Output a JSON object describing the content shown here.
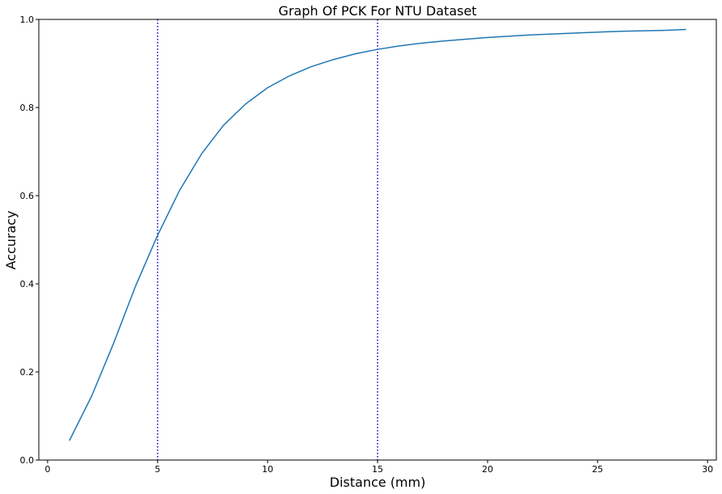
{
  "chart_data": {
    "type": "line",
    "title": "Graph Of PCK For NTU Dataset",
    "xlabel": "Distance (mm)",
    "ylabel": "Accuracy",
    "xlim": [
      -0.4,
      30.4
    ],
    "ylim": [
      0.0,
      1.0
    ],
    "x_ticks": [
      0,
      5,
      10,
      15,
      20,
      25,
      30
    ],
    "y_ticks": [
      0.0,
      0.2,
      0.4,
      0.6,
      0.8,
      1.0
    ],
    "x_tick_labels": [
      "0",
      "5",
      "10",
      "15",
      "20",
      "25",
      "30"
    ],
    "y_tick_labels": [
      "0.0",
      "0.2",
      "0.4",
      "0.6",
      "0.8",
      "1.0"
    ],
    "grid": false,
    "series": [
      {
        "color": "#1f77b4",
        "x": [
          1,
          2,
          3,
          4,
          5,
          6,
          7,
          8,
          9,
          10,
          11,
          12,
          13,
          14,
          15,
          16,
          17,
          18,
          19,
          20,
          21,
          22,
          23,
          24,
          25,
          26,
          27,
          28,
          29
        ],
        "y": [
          0.045,
          0.145,
          0.265,
          0.395,
          0.51,
          0.612,
          0.695,
          0.76,
          0.808,
          0.845,
          0.872,
          0.893,
          0.909,
          0.922,
          0.932,
          0.94,
          0.946,
          0.951,
          0.955,
          0.959,
          0.962,
          0.965,
          0.967,
          0.969,
          0.971,
          0.973,
          0.974,
          0.975,
          0.977
        ]
      }
    ],
    "vlines": [
      {
        "x": 5,
        "color": "#0000cc",
        "style": "dotted"
      },
      {
        "x": 15,
        "color": "#0000cc",
        "style": "dotted"
      }
    ]
  }
}
